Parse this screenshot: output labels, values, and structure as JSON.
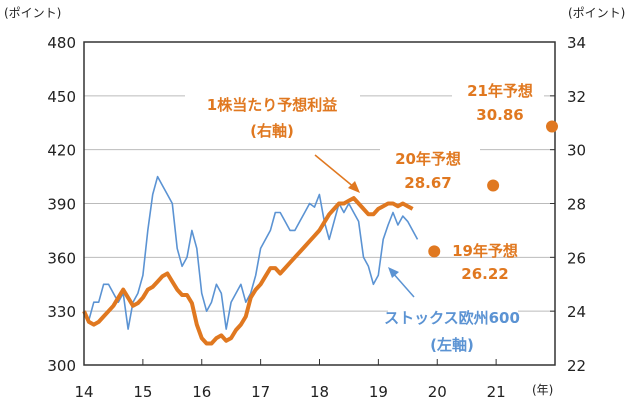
{
  "chart_data": {
    "type": "line",
    "left_axis": {
      "label": "(ポイント)",
      "ylim": [
        300,
        480
      ],
      "ticks": [
        "300",
        "330",
        "360",
        "390",
        "420",
        "450",
        "480"
      ]
    },
    "right_axis": {
      "label": "(ポイント)",
      "ylim": [
        22,
        34
      ],
      "ticks": [
        "22",
        "24",
        "26",
        "28",
        "30",
        "32",
        "34"
      ]
    },
    "x_axis": {
      "unit": "(年)",
      "xlim": [
        14,
        22
      ],
      "ticks": [
        "14",
        "15",
        "16",
        "17",
        "18",
        "19",
        "20",
        "21"
      ]
    },
    "grid": "horizontal",
    "series": [
      {
        "name": "ストックス欧州600",
        "axis_label": "(左軸)",
        "axis": "left",
        "color": "#5B93D3",
        "start_year": 14,
        "step": 0.0833,
        "values": [
          330,
          325,
          335,
          335,
          345,
          345,
          340,
          335,
          340,
          320,
          335,
          340,
          350,
          375,
          395,
          405,
          400,
          395,
          390,
          365,
          355,
          360,
          375,
          365,
          340,
          330,
          335,
          345,
          340,
          320,
          335,
          340,
          345,
          335,
          340,
          350,
          365,
          370,
          375,
          385,
          385,
          380,
          375,
          375,
          380,
          385,
          390,
          388,
          395,
          380,
          370,
          380,
          390,
          385,
          390,
          385,
          380,
          360,
          355,
          345,
          350,
          370,
          378,
          385,
          378,
          383,
          380,
          375,
          370
        ]
      },
      {
        "name": "1株当たり予想利益",
        "axis_label": "(右軸)",
        "axis": "right",
        "color": "#E07820",
        "start_year": 14,
        "step": 0.0833,
        "values": [
          24,
          23.6,
          23.5,
          23.6,
          23.8,
          24.0,
          24.2,
          24.5,
          24.8,
          24.5,
          24.2,
          24.3,
          24.5,
          24.8,
          24.9,
          25.1,
          25.3,
          25.4,
          25.1,
          24.8,
          24.6,
          24.6,
          24.3,
          23.5,
          23.0,
          22.8,
          22.8,
          23.0,
          23.1,
          22.9,
          23.0,
          23.3,
          23.5,
          23.8,
          24.5,
          24.8,
          25.0,
          25.3,
          25.6,
          25.6,
          25.4,
          25.6,
          25.8,
          26.0,
          26.2,
          26.4,
          26.6,
          26.8,
          27.0,
          27.3,
          27.6,
          27.8,
          28.0,
          28.0,
          28.1,
          28.2,
          28.0,
          27.8,
          27.6,
          27.6,
          27.8,
          27.9,
          28.0,
          28.0,
          27.9,
          28.0,
          27.9,
          27.8
        ]
      }
    ],
    "forecasts": [
      {
        "label": "19年予想",
        "value_text": "26.22",
        "x": 20,
        "value": 26.22
      },
      {
        "label": "20年予想",
        "value_text": "28.67",
        "x": 21,
        "value": 28.67
      },
      {
        "label": "21年予想",
        "value_text": "30.86",
        "x": 22,
        "value": 30.86
      }
    ]
  }
}
